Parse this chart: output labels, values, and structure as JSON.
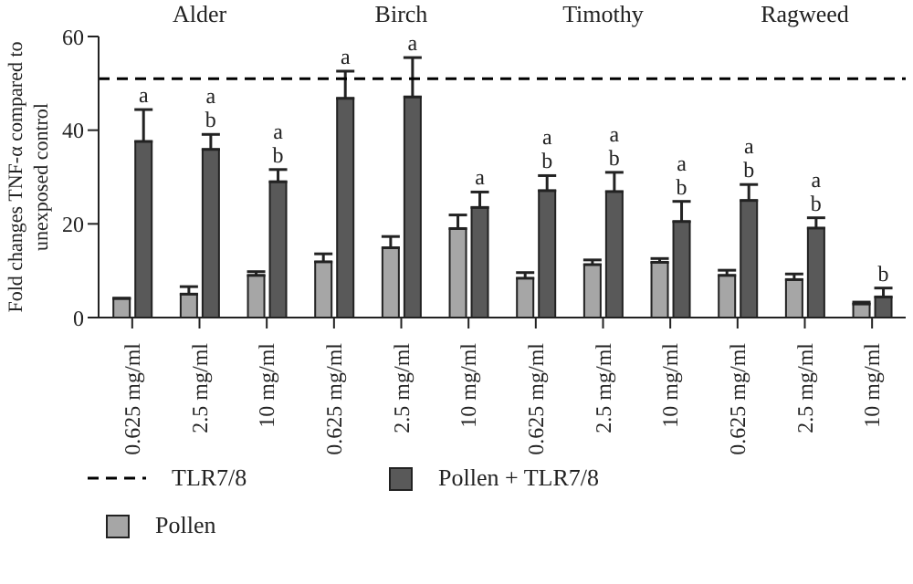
{
  "chart_data": {
    "type": "bar",
    "ylabel": "Fold changes TNF-α compared to unexposed control",
    "categories": [
      "0.625 mg/ml",
      "2.5 mg/ml",
      "10 mg/ml",
      "0.625 mg/ml",
      "2.5 mg/ml",
      "10 mg/ml",
      "0.625 mg/ml",
      "2.5 mg/ml",
      "10 mg/ml",
      "0.625 mg/ml",
      "2.5 mg/ml",
      "10 mg/ml"
    ],
    "series": [
      {
        "name": "Pollen",
        "color": "#a6a6a6",
        "values": [
          4.1,
          5,
          9,
          11.9,
          14.9,
          19,
          8.4,
          11.3,
          11.8,
          9,
          8.1,
          2.9
        ],
        "errors": [
          null,
          [
            5,
            6.6
          ],
          [
            9,
            9.8
          ],
          [
            11.9,
            13.6
          ],
          [
            14.9,
            17.3
          ],
          [
            19,
            21.9
          ],
          [
            8.4,
            9.6
          ],
          [
            11.3,
            12.3
          ],
          [
            11.8,
            12.6
          ],
          [
            9,
            10.1
          ],
          [
            8.1,
            9.3
          ],
          [
            2.9,
            3.3
          ]
        ]
      },
      {
        "name": "Pollen + TLR7/8",
        "color": "#595959",
        "values": [
          37.6,
          35.9,
          29,
          46.8,
          47.1,
          23.5,
          27.1,
          26.9,
          20.5,
          25,
          19.1,
          4.4
        ],
        "errors": [
          [
            37.6,
            44.4
          ],
          [
            35.9,
            39.1
          ],
          [
            29,
            31.6
          ],
          [
            46.8,
            52.6
          ],
          [
            47.1,
            55.5
          ],
          [
            23.5,
            26.8
          ],
          [
            27.1,
            30.3
          ],
          [
            26.9,
            31
          ],
          [
            20.5,
            24.8
          ],
          [
            25,
            28.4
          ],
          [
            19.1,
            21.3
          ],
          [
            4.4,
            6.3
          ]
        ],
        "value_labels": [
          "a",
          "a b",
          "a b",
          "a",
          "a",
          "a",
          "a b",
          "a b",
          "a b",
          "a b",
          "a b",
          "b"
        ]
      }
    ],
    "ylim": [
      0,
      60
    ],
    "yticks": [
      0,
      20,
      40,
      60
    ],
    "grid": false,
    "legend": "bottom",
    "ref_lines": [
      {
        "axis": "y",
        "value": 51,
        "label": "TLR7/8",
        "line_style": "dashed",
        "color": "#000000"
      }
    ],
    "annotations": [
      "Alder",
      "Birch",
      "Timothy",
      "Ragweed"
    ]
  }
}
